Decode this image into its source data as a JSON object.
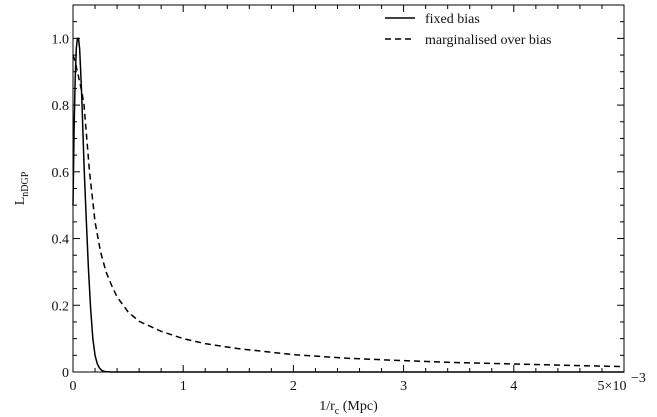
{
  "chart_data": {
    "type": "line",
    "xlabel_main": "1/r",
    "xlabel_sub": "c",
    "xlabel_unit": " (Mpc)",
    "ylabel_main": "L",
    "ylabel_sub": "nDGP",
    "xlim": [
      0,
      0.005
    ],
    "ylim": [
      0,
      1.1
    ],
    "x_ticks": [
      0,
      0.001,
      0.002,
      0.003,
      0.004,
      0.005
    ],
    "x_tick_labels": [
      "0",
      "1",
      "2",
      "3",
      "4",
      "5×10"
    ],
    "x_tick_exponent": "−3",
    "y_ticks": [
      0,
      0.2,
      0.4,
      0.6,
      0.8,
      1.0
    ],
    "y_tick_labels": [
      "0",
      "0.2",
      "0.4",
      "0.6",
      "0.8",
      "1.0"
    ],
    "grid": false,
    "legend_position": "top-right",
    "series": [
      {
        "name": "fixed bias",
        "style": "solid",
        "color": "#000000",
        "x": [
          0,
          1e-05,
          2e-05,
          3e-05,
          4e-05,
          5e-05,
          6e-05,
          7e-05,
          8e-05,
          9e-05,
          0.0001,
          0.00012,
          0.00014,
          0.00016,
          0.00018,
          0.0002,
          0.00022,
          0.00024,
          0.00026,
          0.00028,
          0.0003,
          0.00035,
          0.0004,
          0.0006,
          0.001,
          0.002,
          0.003,
          0.004,
          0.005
        ],
        "y": [
          0.5,
          0.73,
          0.88,
          0.97,
          1.0,
          1.0,
          0.97,
          0.9,
          0.82,
          0.72,
          0.62,
          0.46,
          0.31,
          0.19,
          0.1,
          0.05,
          0.025,
          0.012,
          0.005,
          0.002,
          0.001,
          0,
          0,
          0,
          0,
          0,
          0,
          0,
          0
        ]
      },
      {
        "name": "marginalised over bias",
        "style": "dashed",
        "color": "#000000",
        "x": [
          0,
          2e-05,
          4e-05,
          6e-05,
          8e-05,
          0.0001,
          0.00015,
          0.0002,
          0.00025,
          0.0003,
          0.00035,
          0.0004,
          0.0005,
          0.0006,
          0.0008,
          0.001,
          0.0012,
          0.0015,
          0.002,
          0.0025,
          0.003,
          0.0035,
          0.004,
          0.0045,
          0.005
        ],
        "y": [
          0.95,
          0.93,
          0.9,
          0.87,
          0.84,
          0.8,
          0.6,
          0.45,
          0.36,
          0.3,
          0.26,
          0.225,
          0.18,
          0.152,
          0.122,
          0.1,
          0.085,
          0.07,
          0.052,
          0.041,
          0.034,
          0.028,
          0.024,
          0.02,
          0.016
        ]
      }
    ]
  }
}
